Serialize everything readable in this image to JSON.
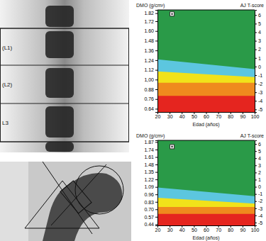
{
  "spine_scan": {
    "labels": [
      "(L1)",
      "(L2)",
      "L3"
    ]
  },
  "chart_data": [
    {
      "type": "area",
      "y_label": "DMO (g/cm²)",
      "y2_label": "AJ T-score",
      "x_label": "Edad (años)",
      "x": [
        20,
        100
      ],
      "xlim": [
        20,
        100
      ],
      "xticks": [
        20,
        30,
        40,
        50,
        60,
        70,
        80,
        90,
        100
      ],
      "ylim": [
        0.6,
        1.86
      ],
      "yticks": [
        1.82,
        1.72,
        {
          "value": 1.6,
          "label": "1.60"
        },
        1.48,
        1.36,
        1.24,
        1.12,
        {
          "value": 1.0,
          "label": "1,00"
        },
        0.88,
        0.76,
        0.64
      ],
      "y2lim": [
        -5.3,
        6.6
      ],
      "y2ticks": [
        6,
        5,
        4,
        3,
        2,
        1,
        0,
        -1,
        -2,
        -3,
        -4,
        -5
      ],
      "series": [
        {
          "color": "#2a9a48",
          "values": [
            1.86,
            1.86
          ]
        },
        {
          "color": "#5cc6df",
          "values": [
            1.25,
            1.13
          ]
        },
        {
          "color": "#f1e21a",
          "values": [
            1.1,
            1.03
          ]
        },
        {
          "color": "#ef8a1e",
          "values": [
            0.96,
            0.96
          ]
        },
        {
          "color": "#e5251f",
          "values": [
            0.8,
            0.8
          ]
        },
        {
          "type": "scatter",
          "marker": "square",
          "color": "#333333",
          "x": [
            32
          ],
          "values": [
            1.81
          ]
        }
      ]
    },
    {
      "type": "area",
      "y_label": "DMO (g/cm²)",
      "y2_label": "AJ T-score",
      "x_label": "Edad (años)",
      "x": [
        20,
        100
      ],
      "xlim": [
        20,
        100
      ],
      "xticks": [
        20,
        30,
        40,
        50,
        60,
        70,
        80,
        90,
        100
      ],
      "ylim": [
        0.42,
        1.9
      ],
      "yticks": [
        1.87,
        1.74,
        1.61,
        1.48,
        1.35,
        1.22,
        1.09,
        0.96,
        0.83,
        {
          "value": 0.7,
          "label": "0.70"
        },
        0.57,
        0.44
      ],
      "y2lim": [
        -5.4,
        6.5
      ],
      "y2ticks": [
        6,
        5,
        4,
        3,
        2,
        1,
        0,
        -1,
        -2,
        -3,
        -4,
        -5
      ],
      "series": [
        {
          "color": "#2a9a48",
          "values": [
            1.9,
            1.9
          ]
        },
        {
          "color": "#5cc6df",
          "values": [
            1.08,
            0.93
          ]
        },
        {
          "color": "#f1e21a",
          "values": [
            0.9,
            0.8
          ]
        },
        {
          "color": "#ef8a1e",
          "values": [
            0.74,
            0.74
          ]
        },
        {
          "color": "#e5251f",
          "values": [
            0.62,
            0.62
          ]
        },
        {
          "type": "scatter",
          "marker": "square",
          "color": "#333333",
          "x": [
            32
          ],
          "values": [
            1.79
          ]
        }
      ]
    }
  ]
}
